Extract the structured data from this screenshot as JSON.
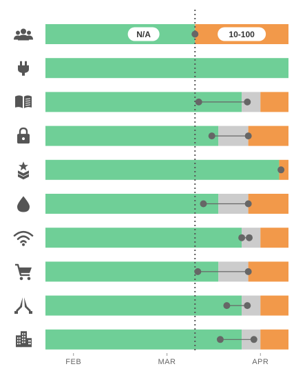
{
  "chart_data": {
    "type": "bar",
    "orientation": "horizontal",
    "title": "",
    "xlabel": "",
    "ylabel": "",
    "x_range": [
      0.7,
      3.3
    ],
    "ticks": [
      {
        "label": "FEB",
        "value": 1
      },
      {
        "label": "MAR",
        "value": 2
      },
      {
        "label": "APR",
        "value": 3
      }
    ],
    "current_marker": 2.3,
    "colors": {
      "green": "#6fcf97",
      "gray": "#cccccc",
      "orange": "#f2994a",
      "marker": "#666666",
      "divider": "#555555"
    },
    "series": [
      {
        "name": "",
        "color": "#6fcf97"
      },
      {
        "name": "",
        "color": "#cccccc"
      },
      {
        "name": "",
        "color": "#f2994a"
      }
    ],
    "rows": [
      {
        "icon": "people-icon",
        "green_end": 2.3,
        "gray_end": 2.3,
        "points": [
          2.3
        ],
        "labels": [
          "N/A",
          "10-100"
        ]
      },
      {
        "icon": "plug-icon",
        "green_end": 3.3,
        "gray_end": 3.3,
        "points": [],
        "labels": []
      },
      {
        "icon": "book-icon",
        "green_end": 2.8,
        "gray_end": 3.0,
        "points": [
          2.34,
          2.86
        ],
        "labels": []
      },
      {
        "icon": "lock-icon",
        "green_end": 2.55,
        "gray_end": 2.87,
        "points": [
          2.48,
          2.87
        ],
        "labels": []
      },
      {
        "icon": "military-rank-icon",
        "green_end": 3.2,
        "gray_end": 3.2,
        "points": [
          3.22
        ],
        "labels": []
      },
      {
        "icon": "drop-icon",
        "green_end": 2.55,
        "gray_end": 2.87,
        "points": [
          2.39,
          2.87
        ],
        "labels": []
      },
      {
        "icon": "wifi-icon",
        "green_end": 2.8,
        "gray_end": 3.0,
        "points": [
          2.8,
          2.88
        ],
        "labels": []
      },
      {
        "icon": "cart-icon",
        "green_end": 2.55,
        "gray_end": 2.87,
        "points": [
          2.33,
          2.87
        ],
        "labels": []
      },
      {
        "icon": "pray-icon",
        "green_end": 2.8,
        "gray_end": 3.0,
        "points": [
          2.64,
          2.86
        ],
        "labels": []
      },
      {
        "icon": "building-icon",
        "green_end": 2.8,
        "gray_end": 3.0,
        "points": [
          2.57,
          2.93
        ],
        "labels": []
      }
    ]
  }
}
